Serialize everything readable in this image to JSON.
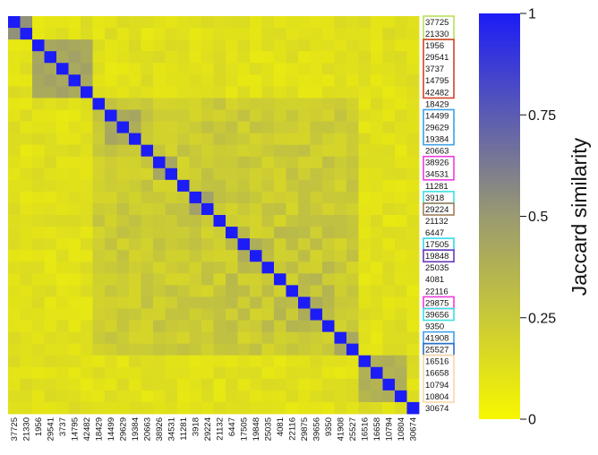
{
  "chart_data": {
    "type": "heatmap",
    "title": "",
    "labels": [
      "37725",
      "21330",
      "1956",
      "29541",
      "3737",
      "14795",
      "42482",
      "18429",
      "14499",
      "29629",
      "19384",
      "20663",
      "38926",
      "34531",
      "11281",
      "3918",
      "29224",
      "21132",
      "6447",
      "17505",
      "19848",
      "25035",
      "4081",
      "22116",
      "29875",
      "39656",
      "9350",
      "41908",
      "25527",
      "16516",
      "16658",
      "10794",
      "10804",
      "30674"
    ],
    "groups": [
      {
        "start": 0,
        "end": 1,
        "color": "#b5e35a"
      },
      {
        "start": 2,
        "end": 6,
        "color": "#d0442a"
      },
      {
        "start": 8,
        "end": 10,
        "color": "#3ea0e8"
      },
      {
        "start": 12,
        "end": 13,
        "color": "#ee3ddc"
      },
      {
        "start": 15,
        "end": 15,
        "color": "#3ee0e0"
      },
      {
        "start": 16,
        "end": 16,
        "color": "#a07e5c"
      },
      {
        "start": 19,
        "end": 19,
        "color": "#34d8ee"
      },
      {
        "start": 20,
        "end": 20,
        "color": "#6a38b8"
      },
      {
        "start": 24,
        "end": 24,
        "color": "#ee3ddc"
      },
      {
        "start": 25,
        "end": 25,
        "color": "#3ee0e0"
      },
      {
        "start": 27,
        "end": 27,
        "color": "#3ea0e8"
      },
      {
        "start": 28,
        "end": 28,
        "color": "#2a6ec8"
      },
      {
        "start": 29,
        "end": 32,
        "color": "#f7d7a8"
      }
    ],
    "blocks": [
      {
        "start": 0,
        "end": 1,
        "value": 0.55
      },
      {
        "start": 2,
        "end": 6,
        "value": 0.44
      },
      {
        "start": 8,
        "end": 10,
        "value": 0.42
      },
      {
        "start": 12,
        "end": 13,
        "value": 0.45
      },
      {
        "start": 15,
        "end": 16,
        "value": 0.48
      },
      {
        "start": 19,
        "end": 20,
        "value": 0.42
      },
      {
        "start": 24,
        "end": 25,
        "value": 0.4
      },
      {
        "start": 27,
        "end": 28,
        "value": 0.42
      },
      {
        "start": 29,
        "end": 32,
        "value": 0.38
      }
    ],
    "background_values": {
      "base": 0.08,
      "mid": 0.18,
      "peak": 0.3
    },
    "diagonal_value": 1,
    "colorbar": {
      "min": 0,
      "max": 1,
      "ticks": [
        "0",
        "0.25",
        "0.5",
        "0.75",
        "1"
      ],
      "label": "Jaccard similarity",
      "colors": {
        "low": "#f7f700",
        "mid": "#9a9a70",
        "high": "#1c1cf7"
      }
    }
  }
}
